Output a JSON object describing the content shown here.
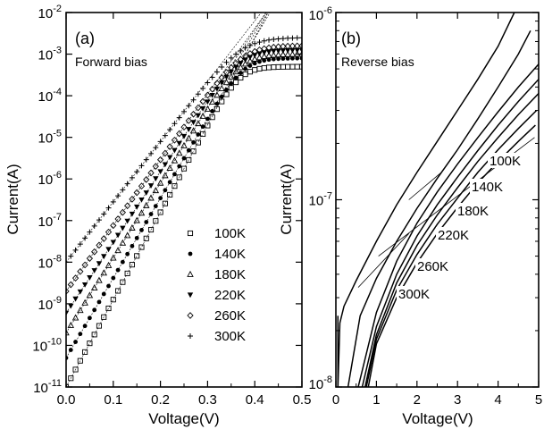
{
  "chart_data": [
    {
      "type": "scatter",
      "panel_label": "(a)",
      "annotation": "Forward bias",
      "xlabel": "Voltage(V)",
      "ylabel": "Current(A)",
      "xlim": [
        0.0,
        0.5
      ],
      "ylim": [
        1e-11,
        0.01
      ],
      "yscale": "log",
      "xticks": [
        "0.0",
        "0.1",
        "0.2",
        "0.3",
        "0.4",
        "0.5"
      ],
      "yticks": [
        {
          "base": "10",
          "exp": "-11"
        },
        {
          "base": "10",
          "exp": "-10"
        },
        {
          "base": "10",
          "exp": "-9"
        },
        {
          "base": "10",
          "exp": "-8"
        },
        {
          "base": "10",
          "exp": "-7"
        },
        {
          "base": "10",
          "exp": "-6"
        },
        {
          "base": "10",
          "exp": "-5"
        },
        {
          "base": "10",
          "exp": "-4"
        },
        {
          "base": "10",
          "exp": "-3"
        },
        {
          "base": "10",
          "exp": "-2"
        }
      ],
      "grid": false,
      "legend_position": "bottom-right",
      "series": [
        {
          "name": "100K",
          "marker": "square-open",
          "i0": 1e-11,
          "slope": 21.0,
          "isat": 0.0005
        },
        {
          "name": "140K",
          "marker": "circle-filled",
          "i0": 5e-11,
          "slope": 19.2,
          "isat": 0.0008
        },
        {
          "name": "180K",
          "marker": "triangle-open",
          "i0": 2e-10,
          "slope": 18.0,
          "isat": 0.001
        },
        {
          "name": "220K",
          "marker": "triangle-down-filled",
          "i0": 6e-10,
          "slope": 17.0,
          "isat": 0.00125
        },
        {
          "name": "260K",
          "marker": "diamond-open",
          "i0": 2e-09,
          "slope": 15.8,
          "isat": 0.0016
        },
        {
          "name": "300K",
          "marker": "plus",
          "i0": 1e-08,
          "slope": 14.5,
          "isat": 0.0025
        }
      ]
    },
    {
      "type": "line",
      "panel_label": "(b)",
      "annotation": "Reverse bias",
      "xlabel": "Voltage(V)",
      "ylabel": "Current(A)",
      "xlim": [
        0,
        5
      ],
      "ylim": [
        1e-08,
        1e-06
      ],
      "yscale": "log",
      "xticks": [
        "0",
        "1",
        "2",
        "3",
        "4",
        "5"
      ],
      "yticks": [
        {
          "base": "10",
          "exp": "-8"
        },
        {
          "base": "10",
          "exp": "-7"
        },
        {
          "base": "10",
          "exp": "-6"
        }
      ],
      "grid": false,
      "series": [
        {
          "name": "100K",
          "x": [
            0.8,
            1.0,
            1.5,
            2.0,
            2.5,
            3.0,
            3.5,
            4.0,
            4.5,
            4.92
          ],
          "y": [
            1e-08,
            1.7e-08,
            3e-08,
            4.6e-08,
            6.6e-08,
            9.1e-08,
            1.23e-07,
            1.6e-07,
            2.05e-07,
            2.5e-07
          ]
        },
        {
          "name": "140K",
          "x": [
            0.75,
            1.0,
            1.5,
            2.0,
            2.5,
            3.0,
            3.5,
            4.0,
            4.5,
            4.95
          ],
          "y": [
            1e-08,
            1.8e-08,
            3.3e-08,
            5.1e-08,
            7.4e-08,
            1.02e-07,
            1.4e-07,
            1.85e-07,
            2.4e-07,
            3e-07
          ]
        },
        {
          "name": "180K",
          "x": [
            0.72,
            1.0,
            1.5,
            2.0,
            2.5,
            3.0,
            3.5,
            4.0,
            4.5,
            5.0
          ],
          "y": [
            1e-08,
            1.9e-08,
            3.6e-08,
            5.7e-08,
            8.3e-08,
            1.16e-07,
            1.6e-07,
            2.15e-07,
            2.85e-07,
            3.7e-07
          ]
        },
        {
          "name": "220K",
          "x": [
            0.65,
            1.0,
            1.5,
            2.0,
            2.5,
            3.0,
            3.5,
            4.0,
            4.5,
            5.0
          ],
          "y": [
            1e-08,
            2.1e-08,
            4e-08,
            6.4e-08,
            9.4e-08,
            1.32e-07,
            1.83e-07,
            2.5e-07,
            3.35e-07,
            4.4e-07
          ]
        },
        {
          "name": "260K",
          "x": [
            0.55,
            1.0,
            1.5,
            2.0,
            2.5,
            3.0,
            3.5,
            4.0,
            4.5,
            5.0
          ],
          "y": [
            1e-08,
            2.5e-08,
            4.7e-08,
            7.5e-08,
            1.1e-07,
            1.55e-07,
            2.15e-07,
            2.95e-07,
            4e-07,
            5.3e-07
          ]
        },
        {
          "name": "300K",
          "x": [
            0.3,
            0.6,
            1.0,
            1.5,
            2.0,
            2.5,
            3.0,
            3.5,
            4.0,
            4.5,
            4.8
          ],
          "y": [
            1e-08,
            2.4e-08,
            3.8e-08,
            6e-08,
            9e-08,
            1.3e-07,
            1.85e-07,
            2.7e-07,
            4e-07,
            6e-07,
            8e-07
          ]
        },
        {
          "name": "",
          "x": [
            0.05,
            0.1,
            0.2,
            0.5,
            1.0,
            1.5,
            2.0,
            2.5,
            3.0,
            3.5,
            4.0,
            4.4
          ],
          "y": [
            1e-08,
            2.2e-08,
            2.7e-08,
            3.7e-08,
            6e-08,
            9.4e-08,
            1.4e-07,
            2.05e-07,
            3e-07,
            4.4e-07,
            6.6e-07,
            1e-06
          ]
        }
      ],
      "temperature_labels": [
        "100K",
        "140K",
        "180K",
        "220K",
        "260K",
        "300K"
      ]
    }
  ]
}
